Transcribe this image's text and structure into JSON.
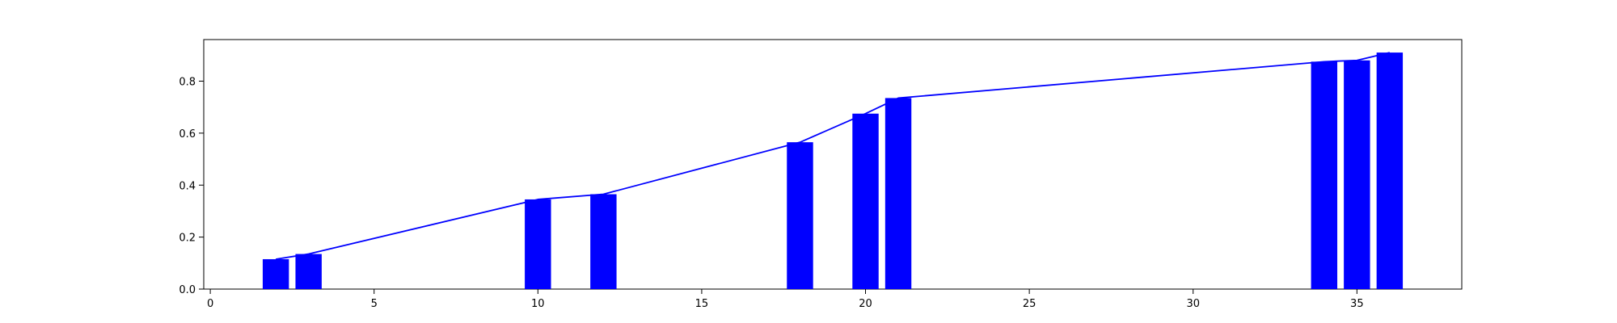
{
  "chart_data": {
    "type": "bar",
    "title": "",
    "xlabel": "",
    "ylabel": "",
    "xlim": [
      -0.2,
      38.2
    ],
    "ylim": [
      0,
      0.96
    ],
    "x_ticks": [
      0,
      5,
      10,
      15,
      20,
      25,
      30,
      35
    ],
    "y_ticks": [
      0.0,
      0.2,
      0.4,
      0.6,
      0.8
    ],
    "x_tick_labels": [
      "0",
      "5",
      "10",
      "15",
      "20",
      "25",
      "30",
      "35"
    ],
    "y_tick_labels": [
      "0.0",
      "0.2",
      "0.4",
      "0.6",
      "0.8"
    ],
    "grid": false,
    "legend": "none",
    "bar_color": "#0000ff",
    "line_color": "#0000ff",
    "x": [
      2,
      3,
      10,
      12,
      18,
      20,
      21,
      34,
      35,
      36
    ],
    "values": [
      0.115,
      0.135,
      0.345,
      0.365,
      0.565,
      0.675,
      0.735,
      0.875,
      0.88,
      0.91
    ]
  }
}
